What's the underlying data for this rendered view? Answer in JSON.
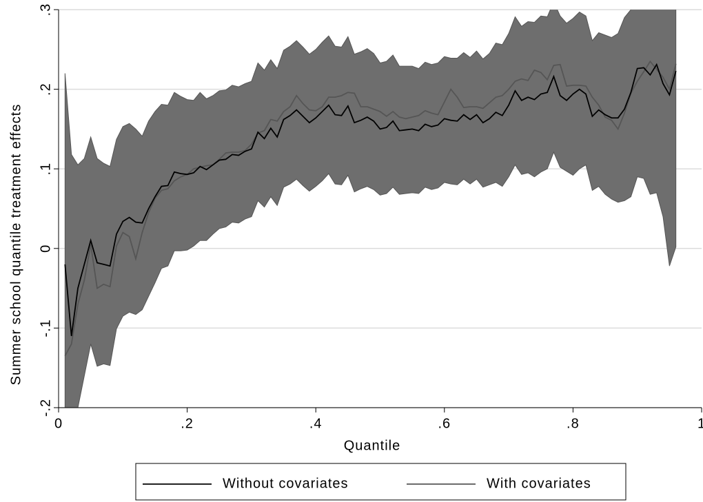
{
  "chart_data": {
    "type": "line",
    "x_label": "Quantile",
    "y_label": "Summer school quantile treatment effects",
    "x": [
      0.01,
      0.02,
      0.03,
      0.04,
      0.05,
      0.06,
      0.07,
      0.08,
      0.09,
      0.1,
      0.11,
      0.12,
      0.13,
      0.14,
      0.15,
      0.16,
      0.17,
      0.18,
      0.19,
      0.2,
      0.21,
      0.22,
      0.23,
      0.24,
      0.25,
      0.26,
      0.27,
      0.28,
      0.29,
      0.3,
      0.31,
      0.32,
      0.33,
      0.34,
      0.35,
      0.36,
      0.37,
      0.38,
      0.39,
      0.4,
      0.41,
      0.42,
      0.43,
      0.44,
      0.45,
      0.46,
      0.47,
      0.48,
      0.49,
      0.5,
      0.51,
      0.52,
      0.53,
      0.54,
      0.55,
      0.56,
      0.57,
      0.58,
      0.59,
      0.6,
      0.61,
      0.62,
      0.63,
      0.64,
      0.65,
      0.66,
      0.67,
      0.68,
      0.69,
      0.7,
      0.71,
      0.72,
      0.73,
      0.74,
      0.75,
      0.76,
      0.77,
      0.78,
      0.79,
      0.8,
      0.81,
      0.82,
      0.83,
      0.84,
      0.85,
      0.86,
      0.87,
      0.88,
      0.89,
      0.9,
      0.91,
      0.92,
      0.93,
      0.94,
      0.95,
      0.96
    ],
    "band": {
      "color": "#6e6e6e",
      "upper": [
        0.22,
        0.118,
        0.105,
        0.113,
        0.14,
        0.113,
        0.107,
        0.103,
        0.137,
        0.153,
        0.157,
        0.15,
        0.141,
        0.16,
        0.172,
        0.181,
        0.18,
        0.196,
        0.191,
        0.187,
        0.186,
        0.196,
        0.188,
        0.192,
        0.198,
        0.199,
        0.205,
        0.203,
        0.207,
        0.21,
        0.233,
        0.224,
        0.237,
        0.226,
        0.249,
        0.254,
        0.261,
        0.253,
        0.244,
        0.25,
        0.259,
        0.267,
        0.254,
        0.253,
        0.266,
        0.244,
        0.247,
        0.251,
        0.245,
        0.233,
        0.235,
        0.243,
        0.229,
        0.229,
        0.229,
        0.226,
        0.234,
        0.231,
        0.233,
        0.241,
        0.239,
        0.239,
        0.246,
        0.24,
        0.248,
        0.238,
        0.245,
        0.258,
        0.256,
        0.27,
        0.291,
        0.279,
        0.285,
        0.284,
        0.292,
        0.291,
        0.31,
        0.292,
        0.283,
        0.289,
        0.297,
        0.292,
        0.261,
        0.271,
        0.268,
        0.265,
        0.27,
        0.29,
        0.3,
        0.32,
        0.36,
        0.38,
        0.4,
        0.38,
        0.37,
        0.42
      ],
      "lower": [
        -0.26,
        -0.34,
        -0.2,
        -0.16,
        -0.12,
        -0.148,
        -0.145,
        -0.147,
        -0.101,
        -0.085,
        -0.08,
        -0.083,
        -0.077,
        -0.06,
        -0.043,
        -0.025,
        -0.022,
        -0.003,
        -0.003,
        -0.002,
        0.003,
        0.01,
        0.01,
        0.018,
        0.025,
        0.027,
        0.033,
        0.032,
        0.037,
        0.04,
        0.06,
        0.052,
        0.065,
        0.054,
        0.077,
        0.081,
        0.087,
        0.079,
        0.072,
        0.078,
        0.085,
        0.094,
        0.081,
        0.08,
        0.092,
        0.071,
        0.075,
        0.078,
        0.074,
        0.067,
        0.069,
        0.077,
        0.068,
        0.069,
        0.07,
        0.069,
        0.077,
        0.074,
        0.076,
        0.083,
        0.081,
        0.08,
        0.087,
        0.081,
        0.087,
        0.077,
        0.08,
        0.083,
        0.078,
        0.09,
        0.105,
        0.093,
        0.095,
        0.09,
        0.096,
        0.1,
        0.121,
        0.102,
        0.097,
        0.092,
        0.1,
        0.105,
        0.073,
        0.078,
        0.068,
        0.062,
        0.058,
        0.06,
        0.065,
        0.09,
        0.088,
        0.068,
        0.07,
        0.04,
        -0.022,
        0.002
      ]
    },
    "series": [
      {
        "name": "Without covariates",
        "color": "#000000",
        "values": [
          -0.02,
          -0.11,
          -0.05,
          -0.02,
          0.01,
          -0.018,
          -0.02,
          -0.022,
          0.018,
          0.034,
          0.039,
          0.033,
          0.032,
          0.05,
          0.065,
          0.078,
          0.079,
          0.096,
          0.094,
          0.093,
          0.095,
          0.103,
          0.099,
          0.105,
          0.111,
          0.112,
          0.118,
          0.117,
          0.122,
          0.125,
          0.146,
          0.138,
          0.151,
          0.14,
          0.162,
          0.167,
          0.174,
          0.166,
          0.158,
          0.164,
          0.172,
          0.18,
          0.168,
          0.167,
          0.179,
          0.158,
          0.161,
          0.165,
          0.16,
          0.15,
          0.152,
          0.16,
          0.148,
          0.149,
          0.15,
          0.148,
          0.156,
          0.153,
          0.155,
          0.163,
          0.161,
          0.16,
          0.168,
          0.162,
          0.168,
          0.158,
          0.163,
          0.171,
          0.167,
          0.18,
          0.198,
          0.186,
          0.19,
          0.187,
          0.194,
          0.196,
          0.216,
          0.192,
          0.186,
          0.194,
          0.2,
          0.194,
          0.166,
          0.174,
          0.168,
          0.164,
          0.164,
          0.175,
          0.196,
          0.226,
          0.227,
          0.218,
          0.231,
          0.207,
          0.193,
          0.223
        ]
      },
      {
        "name": "With covariates",
        "color": "#555555",
        "values": [
          -0.135,
          -0.12,
          -0.07,
          -0.04,
          0.005,
          -0.05,
          -0.045,
          -0.048,
          0.003,
          0.02,
          0.015,
          -0.013,
          0.02,
          0.045,
          0.063,
          0.073,
          0.075,
          0.085,
          0.09,
          0.093,
          0.1,
          0.102,
          0.104,
          0.105,
          0.112,
          0.12,
          0.121,
          0.121,
          0.123,
          0.131,
          0.145,
          0.148,
          0.162,
          0.16,
          0.172,
          0.178,
          0.192,
          0.182,
          0.174,
          0.173,
          0.178,
          0.19,
          0.19,
          0.192,
          0.196,
          0.195,
          0.178,
          0.178,
          0.175,
          0.172,
          0.166,
          0.172,
          0.165,
          0.163,
          0.165,
          0.167,
          0.173,
          0.17,
          0.168,
          0.184,
          0.2,
          0.19,
          0.177,
          0.178,
          0.178,
          0.176,
          0.183,
          0.19,
          0.192,
          0.2,
          0.21,
          0.213,
          0.211,
          0.224,
          0.221,
          0.212,
          0.23,
          0.231,
          0.204,
          0.205,
          0.205,
          0.204,
          0.19,
          0.18,
          0.165,
          0.161,
          0.15,
          0.17,
          0.195,
          0.21,
          0.222,
          0.235,
          0.225,
          0.215,
          0.2,
          0.232
        ]
      }
    ],
    "xlim": [
      0,
      1
    ],
    "xticks": [
      0,
      {
        "value": 0.2,
        "label": ".2"
      },
      {
        "value": 0.4,
        "label": ".4"
      },
      {
        "value": 0.6,
        "label": ".6"
      },
      {
        "value": 0.8,
        "label": ".8"
      },
      1
    ],
    "ylim": [
      -0.2,
      0.3
    ],
    "yticks": [
      {
        "value": -0.2,
        "label": "-.2"
      },
      {
        "value": -0.1,
        "label": "-.1"
      },
      0,
      {
        "value": 0.1,
        "label": ".1"
      },
      {
        "value": 0.2,
        "label": ".2"
      },
      {
        "value": 0.3,
        "label": ".3"
      }
    ],
    "grid": true,
    "legend": "bottom"
  }
}
